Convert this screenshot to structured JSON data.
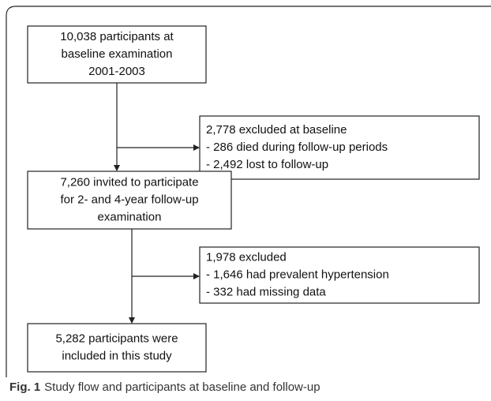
{
  "nodes": [
    {
      "lines": [
        "10,038 participants at",
        "baseline examination",
        "2001-2003"
      ]
    },
    {
      "lines": [
        "2,778 excluded at baseline",
        "- 286 died during follow-up periods",
        "- 2,492 lost to follow-up"
      ]
    },
    {
      "lines": [
        "7,260 invited to participate",
        "for 2- and 4-year follow-up",
        "examination"
      ]
    },
    {
      "lines": [
        "1,978 excluded",
        "- 1,646 had prevalent hypertension",
        "- 332 had missing data"
      ]
    },
    {
      "lines": [
        "5,282 participants were",
        "included in this study"
      ]
    }
  ],
  "caption": {
    "label": "Fig. 1",
    "text": "Study flow and participants at baseline and follow-up"
  }
}
